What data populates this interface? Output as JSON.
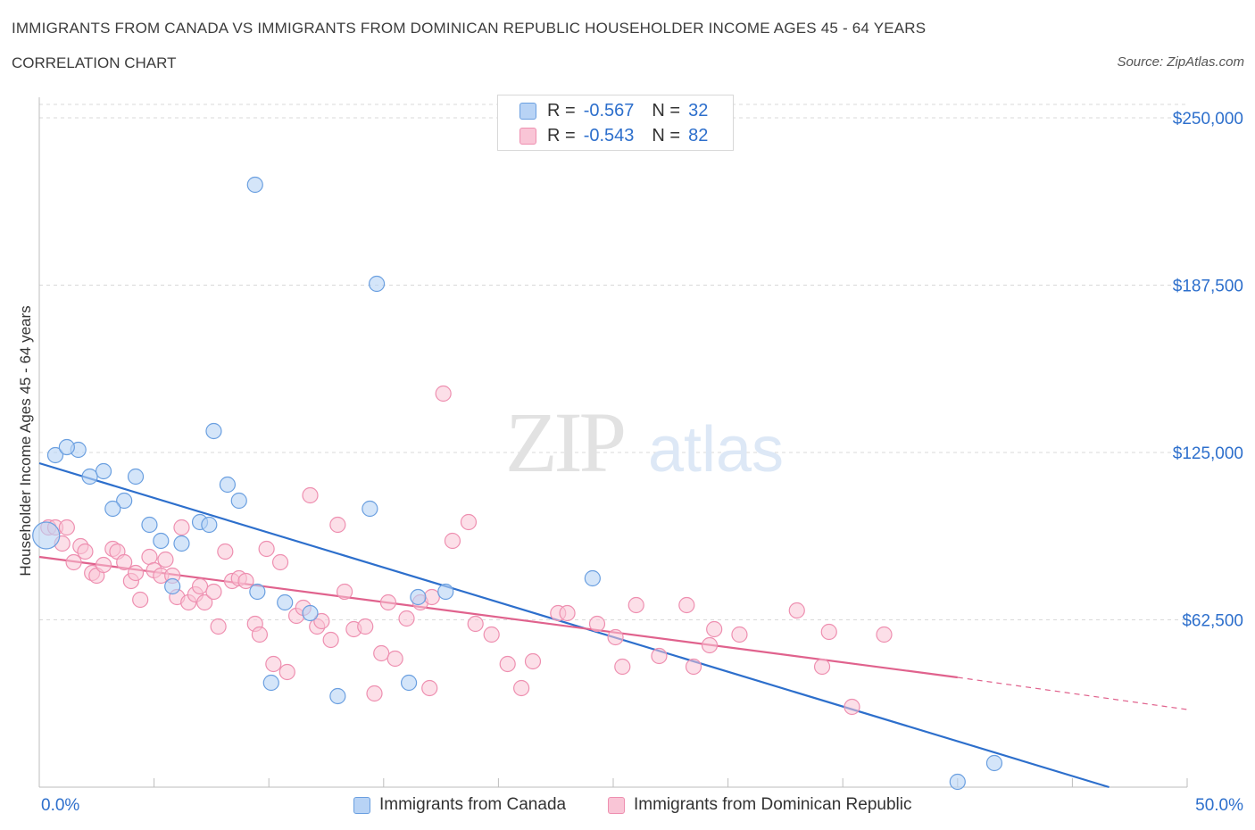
{
  "header": {
    "title": "IMMIGRANTS FROM CANADA VS IMMIGRANTS FROM DOMINICAN REPUBLIC HOUSEHOLDER INCOME AGES 45 - 64 YEARS",
    "subtitle": "CORRELATION CHART",
    "source": "Source: ZipAtlas.com"
  },
  "legend": {
    "rows": [
      {
        "r_label": "R =",
        "r_value": "-0.567",
        "n_label": "N =",
        "n_value": "32"
      },
      {
        "r_label": "R =",
        "r_value": "-0.543",
        "n_label": "N =",
        "n_value": "82"
      }
    ]
  },
  "watermark": {
    "zip": "ZIP",
    "atlas": "atlas"
  },
  "colors": {
    "canada_fill": "#b8d3f5",
    "canada_stroke": "#6a9fe0",
    "canada_line": "#2d6fcc",
    "dr_fill": "#f9c5d6",
    "dr_stroke": "#ee8fb0",
    "dr_line": "#e0628d",
    "axis_label": "#2d6fcc",
    "grid": "#d9d9d9"
  },
  "chart_data": {
    "type": "scatter",
    "title": "IMMIGRANTS FROM CANADA VS IMMIGRANTS FROM DOMINICAN REPUBLIC HOUSEHOLDER INCOME AGES 45 - 64 YEARS",
    "ylabel": "Householder Income Ages 45 - 64 years",
    "xlim": [
      0,
      50
    ],
    "ylim": [
      0,
      255000
    ],
    "x_tick_labels": [
      "0.0%",
      "50.0%"
    ],
    "y_ticks": [
      62500,
      125000,
      187500,
      250000
    ],
    "y_tick_labels": [
      "$62,500",
      "$125,000",
      "$187,500",
      "$250,000"
    ],
    "grid": true,
    "legend_position": "bottom",
    "series": [
      {
        "name": "Immigrants from Canada",
        "points": [
          [
            0.3,
            94000
          ],
          [
            0.7,
            124000
          ],
          [
            1.7,
            126000
          ],
          [
            1.2,
            127000
          ],
          [
            2.8,
            118000
          ],
          [
            2.2,
            116000
          ],
          [
            4.2,
            116000
          ],
          [
            3.7,
            107000
          ],
          [
            3.2,
            104000
          ],
          [
            4.8,
            98000
          ],
          [
            5.3,
            92000
          ],
          [
            6.2,
            91000
          ],
          [
            5.8,
            75000
          ],
          [
            7.0,
            99000
          ],
          [
            7.4,
            98000
          ],
          [
            7.6,
            133000
          ],
          [
            8.2,
            113000
          ],
          [
            8.7,
            107000
          ],
          [
            9.4,
            225000
          ],
          [
            9.5,
            73000
          ],
          [
            10.1,
            39000
          ],
          [
            10.7,
            69000
          ],
          [
            11.8,
            65000
          ],
          [
            13.0,
            34000
          ],
          [
            14.4,
            104000
          ],
          [
            14.7,
            188000
          ],
          [
            16.1,
            39000
          ],
          [
            16.5,
            71000
          ],
          [
            17.7,
            73000
          ],
          [
            24.1,
            78000
          ],
          [
            41.6,
            9000
          ],
          [
            40.0,
            2000
          ]
        ],
        "trend": {
          "x": [
            0,
            46.6
          ],
          "y": [
            121000,
            0
          ]
        }
      },
      {
        "name": "Immigrants from Dominican Republic",
        "points": [
          [
            0.4,
            97000
          ],
          [
            0.7,
            97000
          ],
          [
            1.2,
            97000
          ],
          [
            1.0,
            91000
          ],
          [
            1.5,
            84000
          ],
          [
            1.8,
            90000
          ],
          [
            2.0,
            88000
          ],
          [
            2.3,
            80000
          ],
          [
            2.5,
            79000
          ],
          [
            2.8,
            83000
          ],
          [
            3.2,
            89000
          ],
          [
            3.4,
            88000
          ],
          [
            3.7,
            84000
          ],
          [
            4.0,
            77000
          ],
          [
            4.2,
            80000
          ],
          [
            4.4,
            70000
          ],
          [
            4.8,
            86000
          ],
          [
            5.0,
            81000
          ],
          [
            5.3,
            79000
          ],
          [
            5.5,
            85000
          ],
          [
            5.8,
            79000
          ],
          [
            6.0,
            71000
          ],
          [
            6.2,
            97000
          ],
          [
            6.5,
            69000
          ],
          [
            6.8,
            72000
          ],
          [
            7.0,
            75000
          ],
          [
            7.2,
            69000
          ],
          [
            7.6,
            73000
          ],
          [
            7.8,
            60000
          ],
          [
            8.1,
            88000
          ],
          [
            8.4,
            77000
          ],
          [
            8.7,
            78000
          ],
          [
            9.0,
            77000
          ],
          [
            9.4,
            61000
          ],
          [
            9.6,
            57000
          ],
          [
            9.9,
            89000
          ],
          [
            10.2,
            46000
          ],
          [
            10.5,
            84000
          ],
          [
            10.8,
            43000
          ],
          [
            11.2,
            64000
          ],
          [
            11.5,
            67000
          ],
          [
            11.8,
            109000
          ],
          [
            12.1,
            60000
          ],
          [
            12.3,
            62000
          ],
          [
            12.7,
            55000
          ],
          [
            13.0,
            98000
          ],
          [
            13.3,
            73000
          ],
          [
            13.7,
            59000
          ],
          [
            14.2,
            60000
          ],
          [
            14.6,
            35000
          ],
          [
            14.9,
            50000
          ],
          [
            15.2,
            69000
          ],
          [
            15.5,
            48000
          ],
          [
            16.0,
            63000
          ],
          [
            16.6,
            69000
          ],
          [
            17.0,
            37000
          ],
          [
            17.6,
            147000
          ],
          [
            18.0,
            92000
          ],
          [
            18.7,
            99000
          ],
          [
            19.0,
            61000
          ],
          [
            19.7,
            57000
          ],
          [
            20.4,
            46000
          ],
          [
            21.0,
            37000
          ],
          [
            21.5,
            47000
          ],
          [
            22.6,
            65000
          ],
          [
            24.3,
            61000
          ],
          [
            25.1,
            56000
          ],
          [
            25.4,
            45000
          ],
          [
            26.0,
            68000
          ],
          [
            27.0,
            49000
          ],
          [
            28.2,
            68000
          ],
          [
            28.5,
            45000
          ],
          [
            29.2,
            53000
          ],
          [
            29.4,
            59000
          ],
          [
            30.5,
            57000
          ],
          [
            33.0,
            66000
          ],
          [
            34.1,
            45000
          ],
          [
            34.4,
            58000
          ],
          [
            35.4,
            30000
          ],
          [
            36.8,
            57000
          ],
          [
            17.1,
            71000
          ],
          [
            23.0,
            65000
          ]
        ],
        "trend": {
          "x": [
            0,
            40
          ],
          "y": [
            86000,
            41000
          ]
        },
        "trend_dashed": {
          "x": [
            40,
            50
          ],
          "y": [
            41000,
            29000
          ]
        }
      }
    ]
  },
  "bottom_legend": {
    "items": [
      {
        "label": "Immigrants from Canada"
      },
      {
        "label": "Immigrants from Dominican Republic"
      }
    ]
  }
}
